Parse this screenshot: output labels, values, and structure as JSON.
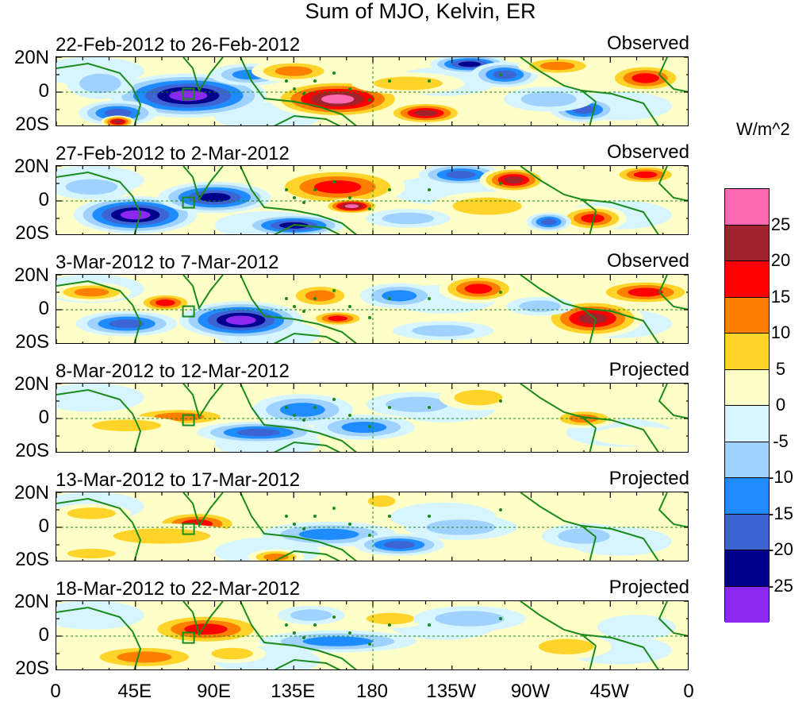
{
  "chart_data": {
    "type": "heatmap",
    "title": "Sum of MJO, Kelvin, ER",
    "units": "W/m^2",
    "x_ticks": [
      "0",
      "45E",
      "90E",
      "135E",
      "180",
      "135W",
      "90W",
      "45W",
      "0"
    ],
    "y_ticks": [
      "20N",
      "0",
      "20S"
    ],
    "xlim_deg_east": [
      0,
      360
    ],
    "ylim_deg": [
      -20,
      20
    ],
    "colorbar": {
      "labels": [
        "25",
        "20",
        "15",
        "10",
        "5",
        "0",
        "-5",
        "-10",
        "-15",
        "-20",
        "-25"
      ],
      "colors": [
        "#ff69b4",
        "#a0222a",
        "#ff0000",
        "#ff7f00",
        "#ffd42a",
        "#ffffc8",
        "#d7f5ff",
        "#a0d2ff",
        "#1e8cff",
        "#3c64d2",
        "#00008c",
        "#8c28f0"
      ]
    },
    "panels": [
      {
        "date_range": "22-Feb-2012 to 26-Feb-2012",
        "kind": "Observed",
        "blobs": [
          {
            "lon": 75,
            "lat": -2,
            "rx": 28,
            "ry": 14,
            "v": -28
          },
          {
            "lon": 35,
            "lat": -12,
            "rx": 14,
            "ry": 8,
            "v": -20
          },
          {
            "lon": 25,
            "lat": 5,
            "rx": 12,
            "ry": 10,
            "v": -8
          },
          {
            "lon": 110,
            "lat": 10,
            "rx": 14,
            "ry": 7,
            "v": -12
          },
          {
            "lon": 160,
            "lat": -4,
            "rx": 24,
            "ry": 12,
            "v": 27
          },
          {
            "lon": 135,
            "lat": 12,
            "rx": 15,
            "ry": 7,
            "v": 15
          },
          {
            "lon": 210,
            "lat": -12,
            "rx": 14,
            "ry": 7,
            "v": 25
          },
          {
            "lon": 235,
            "lat": 16,
            "rx": 14,
            "ry": 6,
            "v": -22
          },
          {
            "lon": 255,
            "lat": 10,
            "rx": 12,
            "ry": 8,
            "v": -18
          },
          {
            "lon": 285,
            "lat": 15,
            "rx": 14,
            "ry": 6,
            "v": 14
          },
          {
            "lon": 300,
            "lat": -10,
            "rx": 12,
            "ry": 8,
            "v": -18
          },
          {
            "lon": 335,
            "lat": 8,
            "rx": 14,
            "ry": 9,
            "v": 18
          },
          {
            "lon": 200,
            "lat": 5,
            "rx": 20,
            "ry": 7,
            "v": 7
          },
          {
            "lon": 280,
            "lat": -4,
            "rx": 16,
            "ry": 8,
            "v": -8
          },
          {
            "lon": 35,
            "lat": -17,
            "rx": 6,
            "ry": 4,
            "v": 22
          }
        ]
      },
      {
        "date_range": "27-Feb-2012 to 2-Mar-2012",
        "kind": "Observed",
        "blobs": [
          {
            "lon": 45,
            "lat": -8,
            "rx": 22,
            "ry": 12,
            "v": -28
          },
          {
            "lon": 90,
            "lat": 2,
            "rx": 20,
            "ry": 10,
            "v": -22
          },
          {
            "lon": 135,
            "lat": -14,
            "rx": 18,
            "ry": 7,
            "v": -25
          },
          {
            "lon": 160,
            "lat": 8,
            "rx": 24,
            "ry": 12,
            "v": 18
          },
          {
            "lon": 168,
            "lat": -3,
            "rx": 10,
            "ry": 5,
            "v": 27
          },
          {
            "lon": 230,
            "lat": 15,
            "rx": 15,
            "ry": 7,
            "v": -20
          },
          {
            "lon": 260,
            "lat": 12,
            "rx": 12,
            "ry": 8,
            "v": 22
          },
          {
            "lon": 245,
            "lat": -3,
            "rx": 20,
            "ry": 9,
            "v": 10
          },
          {
            "lon": 305,
            "lat": -10,
            "rx": 12,
            "ry": 8,
            "v": 16
          },
          {
            "lon": 335,
            "lat": 15,
            "rx": 12,
            "ry": 6,
            "v": 18
          },
          {
            "lon": 280,
            "lat": -12,
            "rx": 8,
            "ry": 6,
            "v": -20
          },
          {
            "lon": 20,
            "lat": 8,
            "rx": 15,
            "ry": 8,
            "v": -10
          },
          {
            "lon": 200,
            "lat": -10,
            "rx": 15,
            "ry": 6,
            "v": -8
          }
        ]
      },
      {
        "date_range": "3-Mar-2012 to 7-Mar-2012",
        "kind": "Observed",
        "blobs": [
          {
            "lon": 105,
            "lat": -6,
            "rx": 22,
            "ry": 12,
            "v": -27
          },
          {
            "lon": 40,
            "lat": -8,
            "rx": 18,
            "ry": 8,
            "v": -18
          },
          {
            "lon": 62,
            "lat": 4,
            "rx": 10,
            "ry": 6,
            "v": 18
          },
          {
            "lon": 20,
            "lat": 10,
            "rx": 14,
            "ry": 6,
            "v": 12
          },
          {
            "lon": 150,
            "lat": 8,
            "rx": 12,
            "ry": 8,
            "v": 12
          },
          {
            "lon": 160,
            "lat": -5,
            "rx": 10,
            "ry": 5,
            "v": 16
          },
          {
            "lon": 195,
            "lat": 8,
            "rx": 14,
            "ry": 8,
            "v": -12
          },
          {
            "lon": 240,
            "lat": 12,
            "rx": 14,
            "ry": 9,
            "v": 17
          },
          {
            "lon": 305,
            "lat": -5,
            "rx": 18,
            "ry": 12,
            "v": 22
          },
          {
            "lon": 335,
            "lat": 10,
            "rx": 18,
            "ry": 8,
            "v": 18
          },
          {
            "lon": 275,
            "lat": 2,
            "rx": 12,
            "ry": 6,
            "v": -10
          },
          {
            "lon": 220,
            "lat": -12,
            "rx": 18,
            "ry": 6,
            "v": -10
          }
        ]
      },
      {
        "date_range": "8-Mar-2012 to 12-Mar-2012",
        "kind": "Projected",
        "blobs": [
          {
            "lon": 70,
            "lat": 1,
            "rx": 20,
            "ry": 6,
            "v": 15
          },
          {
            "lon": 40,
            "lat": -4,
            "rx": 20,
            "ry": 6,
            "v": 8
          },
          {
            "lon": 115,
            "lat": -8,
            "rx": 22,
            "ry": 7,
            "v": -20
          },
          {
            "lon": 140,
            "lat": 5,
            "rx": 18,
            "ry": 10,
            "v": -12
          },
          {
            "lon": 175,
            "lat": -5,
            "rx": 18,
            "ry": 8,
            "v": -12
          },
          {
            "lon": 205,
            "lat": 8,
            "rx": 18,
            "ry": 8,
            "v": -10
          },
          {
            "lon": 240,
            "lat": 12,
            "rx": 14,
            "ry": 8,
            "v": 8
          },
          {
            "lon": 300,
            "lat": 0,
            "rx": 12,
            "ry": 6,
            "v": 12
          },
          {
            "lon": 330,
            "lat": -10,
            "rx": 16,
            "ry": 6,
            "v": 5
          }
        ]
      },
      {
        "date_range": "13-Mar-2012 to 17-Mar-2012",
        "kind": "Projected",
        "blobs": [
          {
            "lon": 80,
            "lat": 2,
            "rx": 16,
            "ry": 8,
            "v": 17
          },
          {
            "lon": 60,
            "lat": -5,
            "rx": 28,
            "ry": 8,
            "v": 10
          },
          {
            "lon": 155,
            "lat": -4,
            "rx": 24,
            "ry": 8,
            "v": -15
          },
          {
            "lon": 195,
            "lat": -10,
            "rx": 16,
            "ry": 7,
            "v": -20
          },
          {
            "lon": 185,
            "lat": 15,
            "rx": 8,
            "ry": 6,
            "v": 10
          },
          {
            "lon": 125,
            "lat": -17,
            "rx": 10,
            "ry": 5,
            "v": 12
          },
          {
            "lon": 230,
            "lat": 0,
            "rx": 20,
            "ry": 8,
            "v": -8
          },
          {
            "lon": 300,
            "lat": -5,
            "rx": 15,
            "ry": 8,
            "v": -6
          },
          {
            "lon": 20,
            "lat": 8,
            "rx": 14,
            "ry": 6,
            "v": 8
          },
          {
            "lon": 20,
            "lat": -15,
            "rx": 14,
            "ry": 5,
            "v": 7
          }
        ]
      },
      {
        "date_range": "18-Mar-2012 to 22-Mar-2012",
        "kind": "Projected",
        "blobs": [
          {
            "lon": 85,
            "lat": 4,
            "rx": 22,
            "ry": 10,
            "v": 16
          },
          {
            "lon": 50,
            "lat": -12,
            "rx": 22,
            "ry": 8,
            "v": 13
          },
          {
            "lon": 100,
            "lat": -10,
            "rx": 12,
            "ry": 6,
            "v": 10
          },
          {
            "lon": 160,
            "lat": -3,
            "rx": 28,
            "ry": 7,
            "v": -15
          },
          {
            "lon": 145,
            "lat": 12,
            "rx": 12,
            "ry": 6,
            "v": -8
          },
          {
            "lon": 190,
            "lat": 10,
            "rx": 14,
            "ry": 6,
            "v": 7
          },
          {
            "lon": 235,
            "lat": 10,
            "rx": 20,
            "ry": 8,
            "v": -6
          },
          {
            "lon": 290,
            "lat": -6,
            "rx": 16,
            "ry": 8,
            "v": 6
          },
          {
            "lon": 330,
            "lat": 5,
            "rx": 14,
            "ry": 8,
            "v": -5
          }
        ]
      }
    ]
  }
}
